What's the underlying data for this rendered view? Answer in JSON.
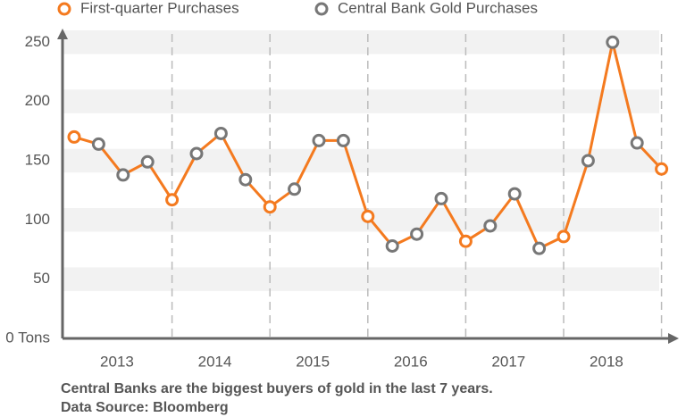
{
  "chart_data": {
    "type": "line",
    "series": [
      {
        "name": "First-quarter Purchases",
        "color": "#f47a1f",
        "values": [
          170,
          null,
          null,
          null,
          117,
          null,
          null,
          null,
          111,
          null,
          null,
          null,
          103,
          null,
          null,
          null,
          82,
          null,
          null,
          null,
          86,
          null,
          null,
          null,
          143
        ]
      },
      {
        "name": "Central Bank Gold Purchases",
        "color": "#777777",
        "values": [
          null,
          164,
          138,
          149,
          null,
          156,
          173,
          134,
          null,
          126,
          167,
          167,
          null,
          78,
          88,
          118,
          null,
          95,
          122,
          76,
          null,
          150,
          250,
          165,
          null
        ]
      }
    ],
    "line_color": "#f47a1f",
    "xticks": [
      "2013",
      "2014",
      "2015",
      "2016",
      "2017",
      "2018"
    ],
    "ylim": [
      0,
      260
    ],
    "yticks": [
      {
        "value": 0,
        "label": "0 Tons"
      },
      50,
      100,
      150,
      200,
      250
    ],
    "grid": true,
    "caption": [
      "Central Banks are the biggest buyers of gold in the last 7 years.",
      "Data Source: Bloomberg"
    ]
  }
}
